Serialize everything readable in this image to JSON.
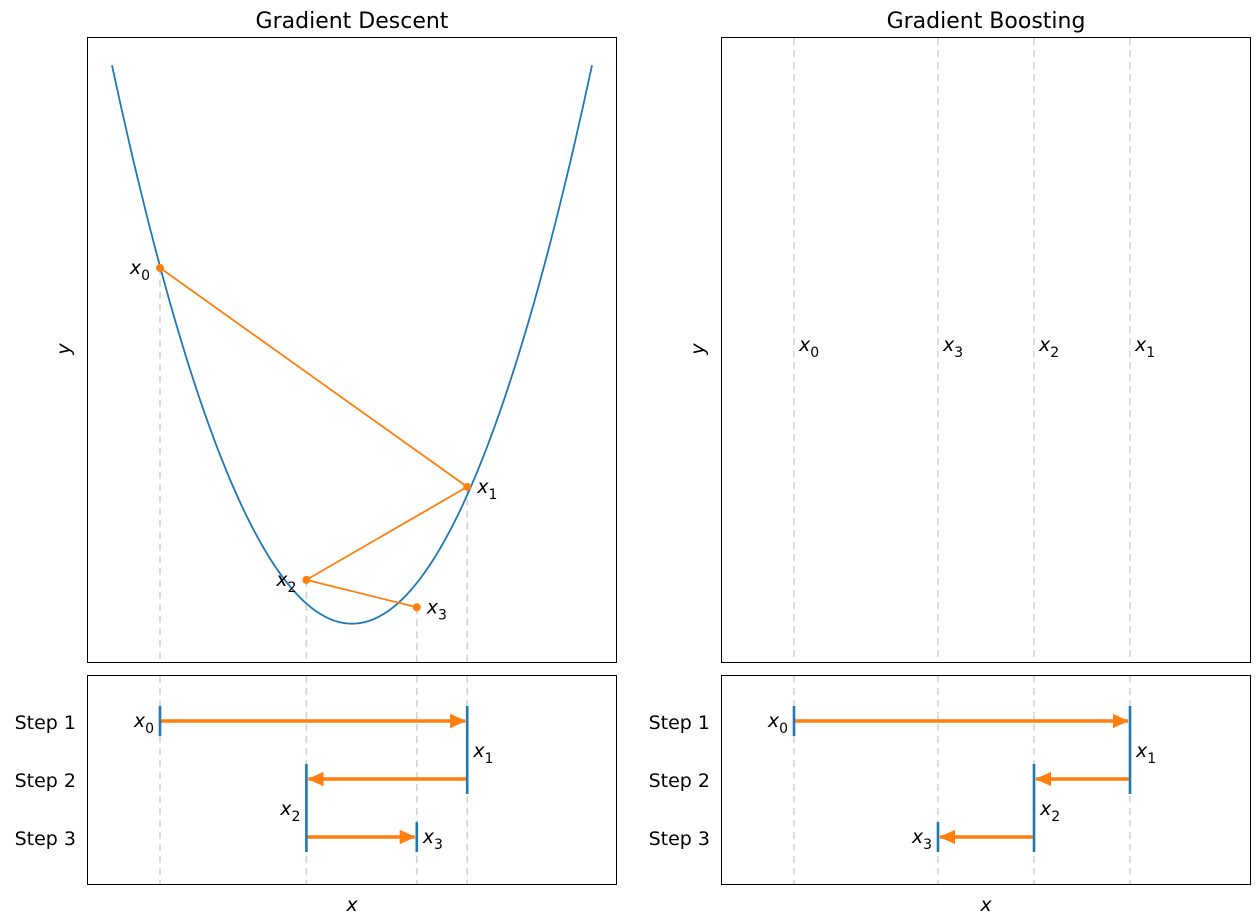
{
  "colors": {
    "curve": "#1f77b4",
    "path": "#ff7f0e",
    "guide": "#d3d3d3",
    "tick": "#1f77b4"
  },
  "chart_data": [
    {
      "id": "gradient-descent",
      "type": "line",
      "title": "Gradient Descent",
      "xlabel": "x",
      "ylabel": "y",
      "xlim": [
        -0.05,
        1.05
      ],
      "ylim": [
        -0.07,
        1.07
      ],
      "grid": false,
      "curve": {
        "function": "parabola",
        "x_min": 0.0,
        "x_max": 1.0,
        "vertex": [
          0.5,
          0.0
        ],
        "y_at_edges": 1.02
      },
      "points": [
        {
          "name": "x",
          "sub": "0",
          "x": 0.1,
          "y": 0.65,
          "label_side": "left"
        },
        {
          "name": "x",
          "sub": "1",
          "x": 0.74,
          "y": 0.25,
          "label_side": "right"
        },
        {
          "name": "x",
          "sub": "2",
          "x": 0.405,
          "y": 0.08,
          "label_side": "left"
        },
        {
          "name": "x",
          "sub": "3",
          "x": 0.635,
          "y": 0.03,
          "label_side": "right"
        }
      ],
      "steps": {
        "labels": [
          "Step 1",
          "Step 2",
          "Step 3"
        ],
        "moves": [
          {
            "from": 0,
            "to": 1
          },
          {
            "from": 1,
            "to": 2
          },
          {
            "from": 2,
            "to": 3
          }
        ]
      }
    },
    {
      "id": "gradient-boosting",
      "type": "line",
      "title": "Gradient Boosting",
      "xlabel": "x",
      "ylabel": "y",
      "xlim": [
        -0.05,
        1.05
      ],
      "ylim": [
        0,
        1
      ],
      "grid": false,
      "positions": [
        {
          "name": "x",
          "sub": "0",
          "x": 0.1
        },
        {
          "name": "x",
          "sub": "1",
          "x": 0.8
        },
        {
          "name": "x",
          "sub": "2",
          "x": 0.6
        },
        {
          "name": "x",
          "sub": "3",
          "x": 0.4
        }
      ],
      "label_order": [
        0,
        3,
        2,
        1
      ],
      "steps": {
        "labels": [
          "Step 1",
          "Step 2",
          "Step 3"
        ],
        "moves": [
          {
            "from": 0,
            "to": 1
          },
          {
            "from": 1,
            "to": 2
          },
          {
            "from": 2,
            "to": 3
          }
        ]
      }
    }
  ]
}
